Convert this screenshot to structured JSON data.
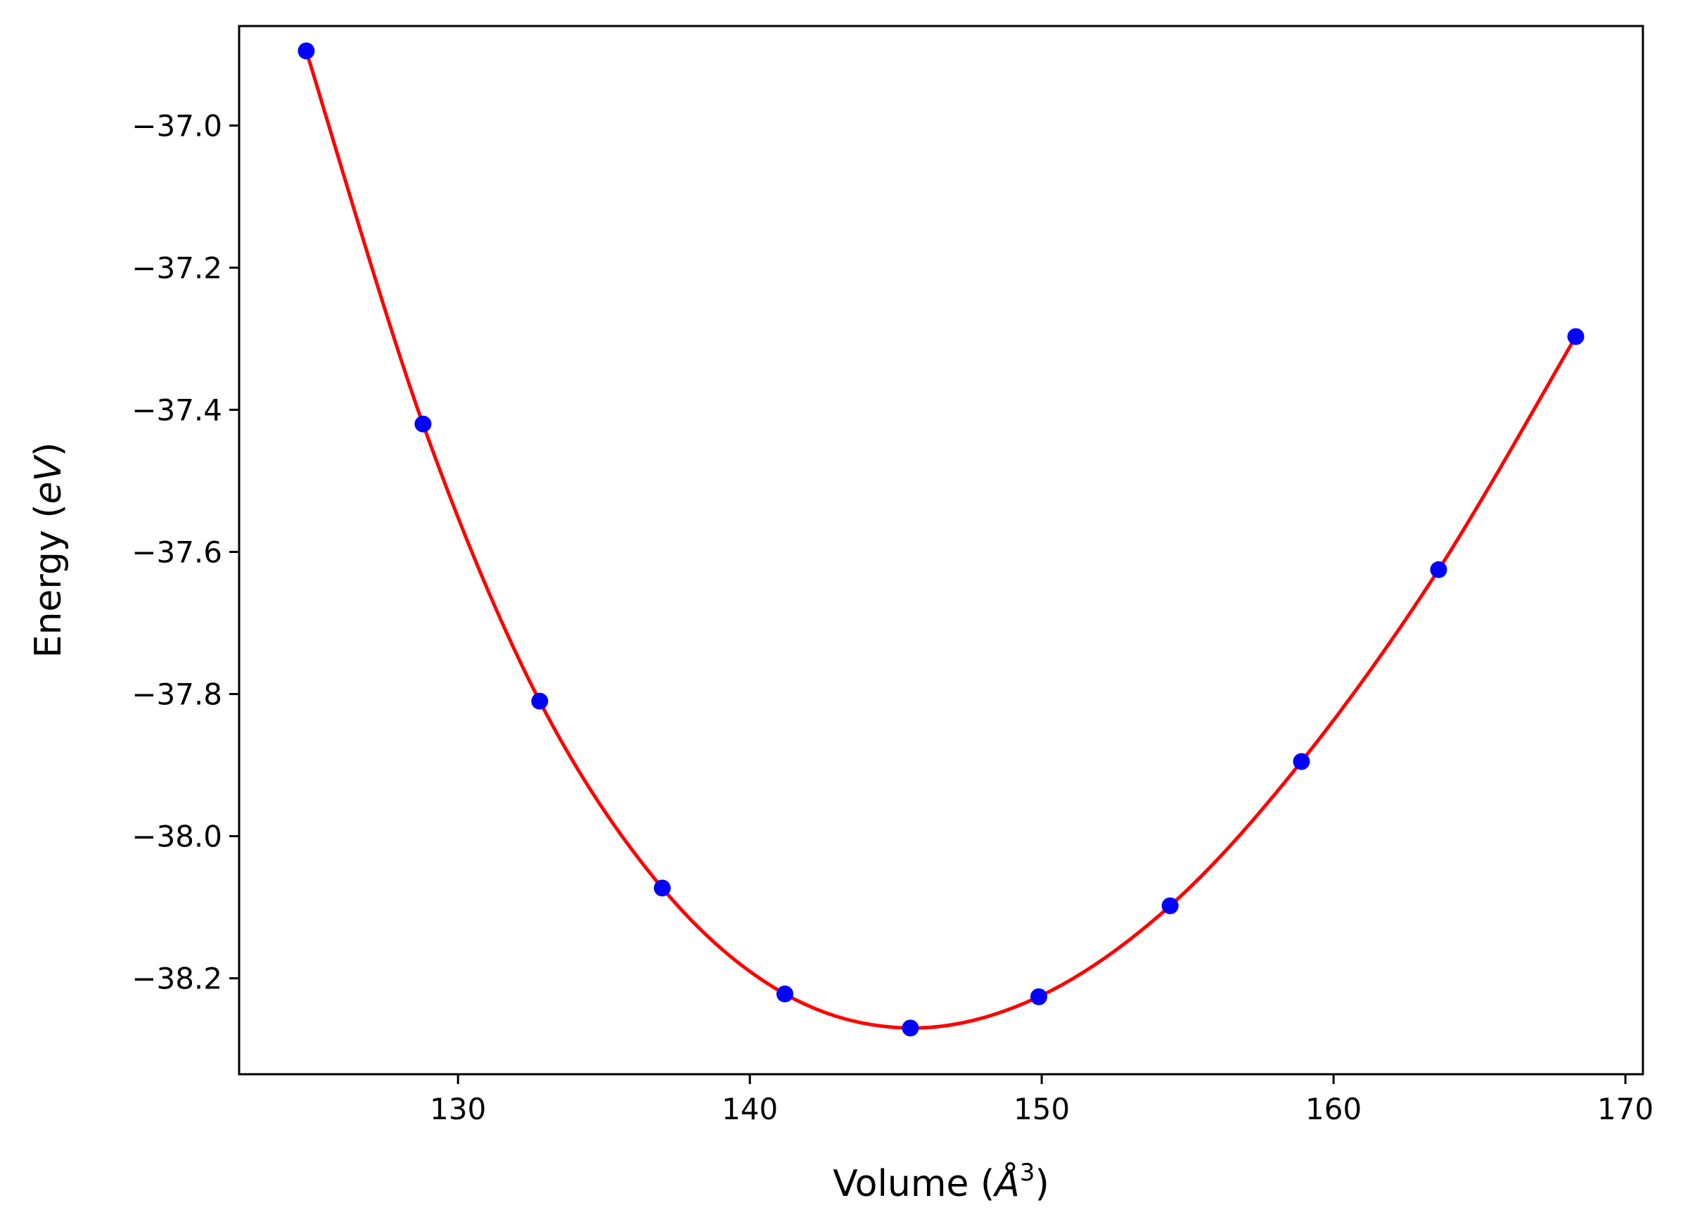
{
  "chart_data": {
    "type": "scatter",
    "title": "",
    "xlabel": {
      "prefix": "Volume (",
      "symbol": "Å",
      "superscript": "3",
      "suffix": ")"
    },
    "ylabel": {
      "prefix": "Energy (",
      "symbol": "eV",
      "suffix": ")"
    },
    "xlim": [
      122.5,
      170.6
    ],
    "ylim": [
      -38.335,
      -36.86
    ],
    "xticks": [
      130,
      140,
      150,
      160,
      170
    ],
    "xtick_labels": [
      "130",
      "140",
      "150",
      "160",
      "170"
    ],
    "yticks": [
      -37.0,
      -37.2,
      -37.4,
      -37.6,
      -37.8,
      -38.0,
      -38.2
    ],
    "ytick_labels": [
      "−37.0",
      "−37.2",
      "−37.4",
      "−37.6",
      "−37.8",
      "−38.0",
      "−38.2"
    ],
    "grid": false,
    "legend": "none",
    "series": [
      {
        "kind": "points",
        "color": "#0000ff",
        "x": [
          124.8,
          128.8,
          132.8,
          137.0,
          141.2,
          145.5,
          149.9,
          154.4,
          158.9,
          163.6,
          168.3
        ],
        "y": [
          -36.895,
          -37.42,
          -37.81,
          -38.073,
          -38.222,
          -38.27,
          -38.226,
          -38.098,
          -37.895,
          -37.625,
          -37.297
        ]
      },
      {
        "kind": "fit_curve",
        "color": "#ff0000",
        "x": [
          124.8,
          128.8,
          132.8,
          137.0,
          141.2,
          145.5,
          149.9,
          154.4,
          158.9,
          163.6,
          168.3
        ],
        "y": [
          -36.895,
          -37.42,
          -37.81,
          -38.073,
          -38.222,
          -38.27,
          -38.226,
          -38.098,
          -37.895,
          -37.625,
          -37.297
        ]
      }
    ]
  }
}
